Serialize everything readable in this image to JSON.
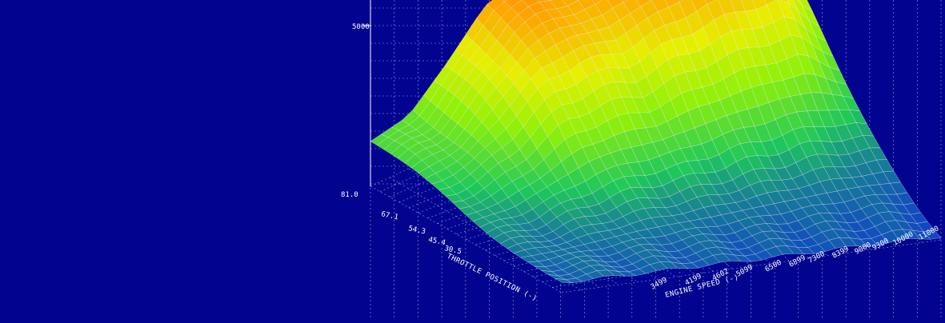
{
  "chart_data": {
    "type": "surface",
    "title": "",
    "xlabel": "THROTTLE POSITION (-)",
    "ylabel": "ENGINE SPEED (-)",
    "zlabel": "",
    "background": "#02048f",
    "grid": "on",
    "z_ticks": [
      "5000"
    ],
    "throttle_ticks": [
      "81.0",
      "67.1",
      "54.3",
      "45.4",
      "30.5"
    ],
    "speed_ticks": [
      "3499",
      "4199",
      "4602",
      "5099",
      "6500",
      "6899",
      "7300",
      "8399",
      "9000",
      "9300",
      "10000",
      "11000"
    ],
    "colormap": [
      "#1040c8",
      "#1fc85a",
      "#8ef00a",
      "#e6f000",
      "#ffa000",
      "#ff3800"
    ],
    "surface_z_profile": {
      "speed_fraction": [
        0.0,
        0.1,
        0.2,
        0.3,
        0.4,
        0.5,
        0.6,
        0.7,
        0.8,
        0.9,
        1.0
      ],
      "z_at_full_throttle": [
        0.28,
        0.33,
        0.55,
        0.8,
        0.86,
        0.82,
        0.9,
        0.95,
        0.97,
        0.93,
        0.6
      ]
    }
  }
}
